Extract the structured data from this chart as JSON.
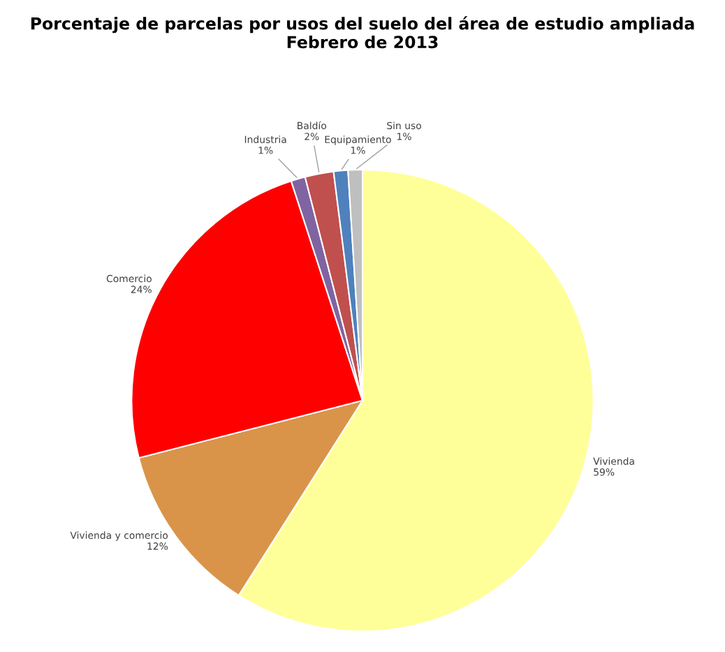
{
  "chart_data": {
    "type": "pie",
    "title": "Porcentaje de parcelas por usos del suelo del área de estudio ampliada\nFebrero de 2013",
    "categories": [
      "Vivienda",
      "Vivienda y comercio",
      "Comercio",
      "Industria",
      "Baldío",
      "Equipamiento",
      "Sin uso"
    ],
    "values": [
      59,
      12,
      24,
      1,
      2,
      1,
      1
    ],
    "colors": [
      "#ffff99",
      "#d9944a",
      "#ff0000",
      "#8064a2",
      "#c0504d",
      "#4f81bd",
      "#bfbfbf"
    ],
    "value_labels": [
      "59%",
      "12%",
      "24%",
      "1%",
      "2%",
      "1%",
      "1%"
    ]
  }
}
